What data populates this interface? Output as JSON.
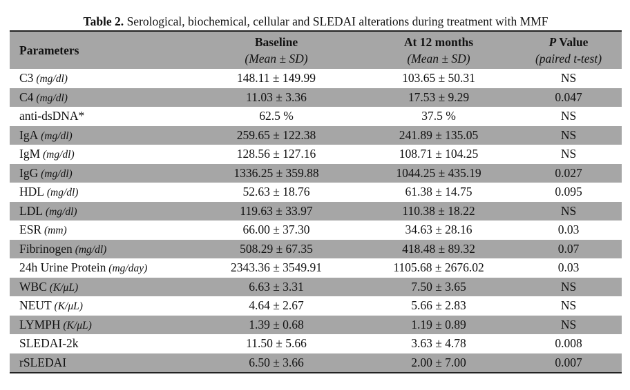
{
  "caption": {
    "label": "Table 2.",
    "text": " Serological, biochemical, cellular and SLEDAI alterations during treatment with MMF"
  },
  "header": {
    "parameters": "Parameters",
    "baseline": "Baseline",
    "baseline_sub": "(Mean ± SD)",
    "month12": "At 12 months",
    "month12_sub": "(Mean ± SD)",
    "p_italic": "P",
    "p_rest": " Value",
    "p_sub": "(paired t-test)"
  },
  "rows": [
    {
      "name": "C3",
      "unit": "(mg/dl)",
      "baseline": "148.11 ± 149.99",
      "month12": "103.65 ± 50.31",
      "p": "NS"
    },
    {
      "name": "C4",
      "unit": "(mg/dl)",
      "baseline": "11.03 ± 3.36",
      "month12": "17.53 ± 9.29",
      "p": "0.047"
    },
    {
      "name": "anti-dsDNA*",
      "unit": "",
      "baseline": "62.5 %",
      "month12": "37.5 %",
      "p": "NS"
    },
    {
      "name": "IgA",
      "unit": "(mg/dl)",
      "baseline": "259.65 ± 122.38",
      "month12": "241.89 ± 135.05",
      "p": "NS"
    },
    {
      "name": "IgM",
      "unit": "(mg/dl)",
      "baseline": "128.56 ± 127.16",
      "month12": "108.71 ± 104.25",
      "p": "NS"
    },
    {
      "name": "IgG",
      "unit": "(mg/dl)",
      "baseline": "1336.25 ± 359.88",
      "month12": "1044.25 ± 435.19",
      "p": "0.027"
    },
    {
      "name": "HDL",
      "unit": "(mg/dl)",
      "baseline": "52.63 ± 18.76",
      "month12": "61.38 ± 14.75",
      "p": "0.095"
    },
    {
      "name": "LDL",
      "unit": "(mg/dl)",
      "baseline": "119.63 ± 33.97",
      "month12": "110.38 ± 18.22",
      "p": "NS"
    },
    {
      "name": "ESR",
      "unit": "(mm)",
      "baseline": "66.00 ± 37.30",
      "month12": "34.63 ± 28.16",
      "p": "0.03"
    },
    {
      "name": "Fibrinogen",
      "unit": "(mg/dl)",
      "baseline": "508.29 ± 67.35",
      "month12": "418.48 ± 89.32",
      "p": "0.07"
    },
    {
      "name": "24h Urine Protein",
      "unit": "(mg/day)",
      "baseline": "2343.36 ± 3549.91",
      "month12": "1105.68 ± 2676.02",
      "p": "0.03"
    },
    {
      "name": "WBC",
      "unit": "(K/μL)",
      "baseline": "6.63 ± 3.31",
      "month12": "7.50 ± 3.65",
      "p": "NS"
    },
    {
      "name": "NEUT",
      "unit": "(K/μL)",
      "baseline": "4.64 ± 2.67",
      "month12": "5.66 ± 2.83",
      "p": "NS"
    },
    {
      "name": "LYMPH",
      "unit": "(K/μL)",
      "baseline": "1.39 ± 0.68",
      "month12": "1.19 ± 0.89",
      "p": "NS"
    },
    {
      "name": "SLEDAI-2k",
      "unit": "",
      "baseline": "11.50 ± 5.66",
      "month12": "3.63 ± 4.78",
      "p": "0.008"
    },
    {
      "name": "rSLEDAI",
      "unit": "",
      "baseline": "6.50 ± 3.66",
      "month12": "2.00 ± 7.00",
      "p": "0.007"
    }
  ]
}
